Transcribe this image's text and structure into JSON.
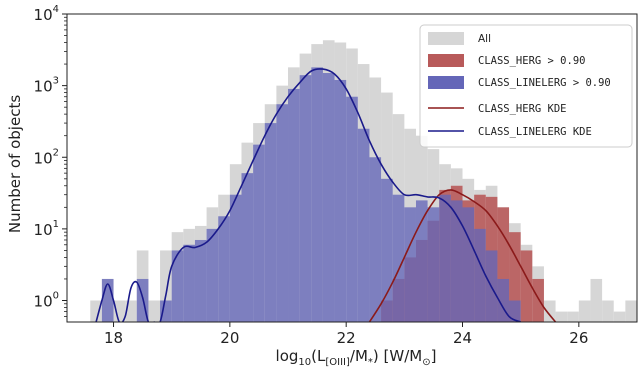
{
  "chart_data": {
    "type": "bar",
    "xlabel": "log₁₀(L[OIII]/M*) [W/M⊙]",
    "ylabel": "Number of objects",
    "xlim": [
      17.2,
      27.0
    ],
    "ylim_log10": [
      -0.3,
      4.0
    ],
    "y_scale": "log",
    "bin_width": 0.2,
    "x_ticks": [
      18,
      20,
      22,
      24,
      26
    ],
    "x_tick_labels": [
      "18",
      "20",
      "22",
      "24",
      "26"
    ],
    "y_ticks": [
      1,
      10,
      100,
      1000,
      10000
    ],
    "y_tick_labels": [
      "10^0",
      "10^1",
      "10^2",
      "10^3",
      "10^4"
    ],
    "legend_position": "top-right",
    "colors": {
      "all": "#d6d6d6",
      "herg": "#b85a5a",
      "linelerg": "#6466b8",
      "overlap": "#5c2f74",
      "herg_kde": "#8b1a1a",
      "linelerg_kde": "#1a1a8b"
    },
    "series": [
      {
        "name": "All",
        "bin_start": [
          17.6,
          17.8,
          18.0,
          18.2,
          18.4,
          18.6,
          18.8,
          19.0,
          19.2,
          19.4,
          19.6,
          19.8,
          20.0,
          20.2,
          20.4,
          20.6,
          20.8,
          21.0,
          21.2,
          21.4,
          21.6,
          21.8,
          22.0,
          22.2,
          22.4,
          22.6,
          22.8,
          23.0,
          23.2,
          23.4,
          23.6,
          23.8,
          24.0,
          24.2,
          24.4,
          24.6,
          24.8,
          25.0,
          25.2,
          25.4,
          25.6,
          25.8,
          26.0,
          26.2,
          26.4,
          26.6,
          26.8
        ],
        "values": [
          1,
          2,
          1,
          1,
          5,
          1,
          5,
          9,
          10,
          11,
          20,
          30,
          80,
          160,
          300,
          550,
          1000,
          1800,
          2800,
          3800,
          4300,
          4000,
          3300,
          2000,
          1300,
          800,
          400,
          250,
          200,
          130,
          80,
          70,
          50,
          35,
          40,
          20,
          12,
          6,
          3,
          1,
          0.7,
          0.7,
          1,
          2,
          1,
          0.7,
          1
        ]
      },
      {
        "name": "CLASS_HERG > 0.90",
        "bin_start": [
          22.6,
          22.8,
          23.0,
          23.2,
          23.4,
          23.6,
          23.8,
          24.0,
          24.2,
          24.4,
          24.6,
          24.8,
          25.0,
          25.2
        ],
        "values": [
          1,
          2,
          4,
          7,
          13,
          35,
          40,
          25,
          30,
          28,
          20,
          9,
          5,
          2
        ]
      },
      {
        "name": "CLASS_LINELERG > 0.90",
        "bin_start": [
          17.8,
          18.0,
          18.2,
          18.4,
          18.6,
          18.8,
          19.0,
          19.2,
          19.4,
          19.6,
          19.8,
          20.0,
          20.2,
          20.4,
          20.6,
          20.8,
          21.0,
          21.2,
          21.4,
          21.6,
          21.8,
          22.0,
          22.2,
          22.4,
          22.6,
          22.8,
          23.0,
          23.2,
          23.4,
          23.6,
          23.8,
          24.0,
          24.2,
          24.4,
          24.6,
          24.8
        ],
        "values": [
          2,
          0.5,
          0.5,
          2,
          0.5,
          1,
          5,
          6,
          7,
          10,
          15,
          30,
          60,
          150,
          300,
          550,
          900,
          1400,
          1800,
          1500,
          1200,
          700,
          250,
          100,
          50,
          30,
          20,
          25,
          20,
          30,
          25,
          20,
          10,
          5,
          2,
          1
        ]
      },
      {
        "name": "CLASS_HERG KDE",
        "x": [
          22.4,
          22.6,
          22.8,
          23.0,
          23.2,
          23.4,
          23.6,
          23.8,
          24.0,
          24.2,
          24.4,
          24.6,
          24.8,
          25.0,
          25.2,
          25.4,
          25.6
        ],
        "values": [
          0.5,
          0.9,
          1.8,
          4,
          9,
          18,
          30,
          35,
          30,
          24,
          18,
          11,
          6,
          3,
          1.5,
          0.8,
          0.5
        ]
      },
      {
        "name": "CLASS_LINELERG KDE",
        "x": [
          17.7,
          17.8,
          17.9,
          18.0,
          18.1,
          18.2,
          18.3,
          18.4,
          18.5,
          18.6,
          18.7,
          18.8,
          18.9,
          19.0,
          19.2,
          19.4,
          19.6,
          19.8,
          20.0,
          20.2,
          20.4,
          20.6,
          20.8,
          21.0,
          21.2,
          21.4,
          21.6,
          21.8,
          22.0,
          22.2,
          22.4,
          22.6,
          22.8,
          23.0,
          23.2,
          23.4,
          23.6,
          23.8,
          24.0,
          24.2,
          24.4,
          24.6,
          24.8,
          25.0
        ],
        "values": [
          0.5,
          1.0,
          1.7,
          1.0,
          0.5,
          0.6,
          1.5,
          1.8,
          1.1,
          0.5,
          0.5,
          0.5,
          1.2,
          3,
          5.5,
          5.5,
          6.5,
          10,
          18,
          40,
          90,
          200,
          400,
          700,
          1100,
          1600,
          1700,
          1450,
          900,
          420,
          170,
          80,
          45,
          30,
          30,
          28,
          27,
          20,
          11,
          5,
          2.2,
          1.1,
          0.6,
          0.5
        ]
      }
    ]
  }
}
